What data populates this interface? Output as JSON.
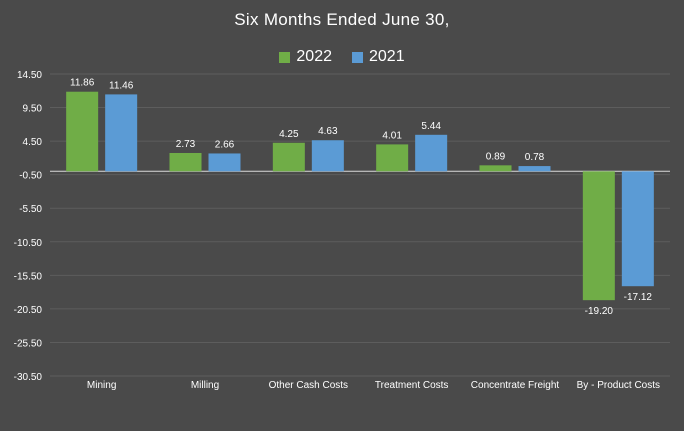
{
  "chart_data": {
    "type": "bar",
    "title": "Six Months Ended June 30,",
    "categories": [
      "Mining",
      "Milling",
      "Other Cash Costs",
      "Treatment Costs",
      "Concentrate Freight",
      "By - Product Costs"
    ],
    "series": [
      {
        "name": "2022",
        "color": "#70ad47",
        "values": [
          11.86,
          2.73,
          4.25,
          4.01,
          0.89,
          -19.2
        ],
        "labels": [
          "11.86",
          "2.73",
          "4.25",
          "4.01",
          "0.89",
          "-19.20"
        ]
      },
      {
        "name": "2021",
        "color": "#5b9bd5",
        "values": [
          11.46,
          2.66,
          4.63,
          5.44,
          0.78,
          -17.12
        ],
        "labels": [
          "11.46",
          "2.66",
          "4.63",
          "5.44",
          "0.78",
          "-17.12"
        ]
      }
    ],
    "yticks": [
      14.5,
      9.5,
      4.5,
      -0.5,
      -5.5,
      -10.5,
      -15.5,
      -20.5,
      -25.5,
      -30.5
    ],
    "ytick_labels": [
      "14.50",
      "9.50",
      "4.50",
      "-0.50",
      "-5.50",
      "-10.50",
      "-15.50",
      "-20.50",
      "-25.50",
      "-30.50"
    ],
    "ylim": [
      -30.5,
      14.5
    ],
    "grid": true,
    "legend_position": "top-center",
    "xlabel": "",
    "ylabel": ""
  }
}
